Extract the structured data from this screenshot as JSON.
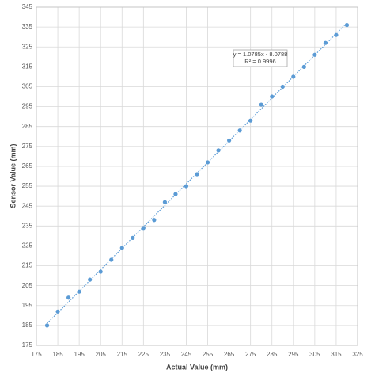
{
  "chart_data": {
    "type": "scatter",
    "x_label": "Actual Value (mm)",
    "y_label": "Sensor Value (mm)",
    "x": [
      180,
      185,
      190,
      195,
      200,
      205,
      210,
      215,
      220,
      225,
      230,
      235,
      240,
      245,
      250,
      255,
      260,
      265,
      270,
      275,
      280,
      285,
      290,
      295,
      300,
      305,
      310,
      315,
      320
    ],
    "values": [
      185,
      192,
      199,
      202,
      208,
      212,
      218,
      224,
      229,
      234,
      238,
      247,
      251,
      255,
      261,
      267,
      273,
      278,
      283,
      288,
      296,
      300,
      305,
      310,
      315,
      321,
      327,
      331,
      336
    ],
    "color": "#5b9bd5",
    "xlim": [
      175,
      325
    ],
    "xticks": [
      175,
      185,
      195,
      205,
      215,
      225,
      235,
      245,
      255,
      265,
      275,
      285,
      295,
      305,
      315,
      325
    ],
    "ylim": [
      175,
      345
    ],
    "yticks": [
      175,
      185,
      195,
      205,
      215,
      225,
      235,
      245,
      255,
      265,
      275,
      285,
      295,
      305,
      315,
      325,
      335,
      345
    ],
    "grid": true,
    "trendline": {
      "slope": 1.0785,
      "intercept": -8.0788,
      "label": "y = 1.0785x - 8.0788",
      "r2_label": "R² = 0.9996"
    }
  }
}
